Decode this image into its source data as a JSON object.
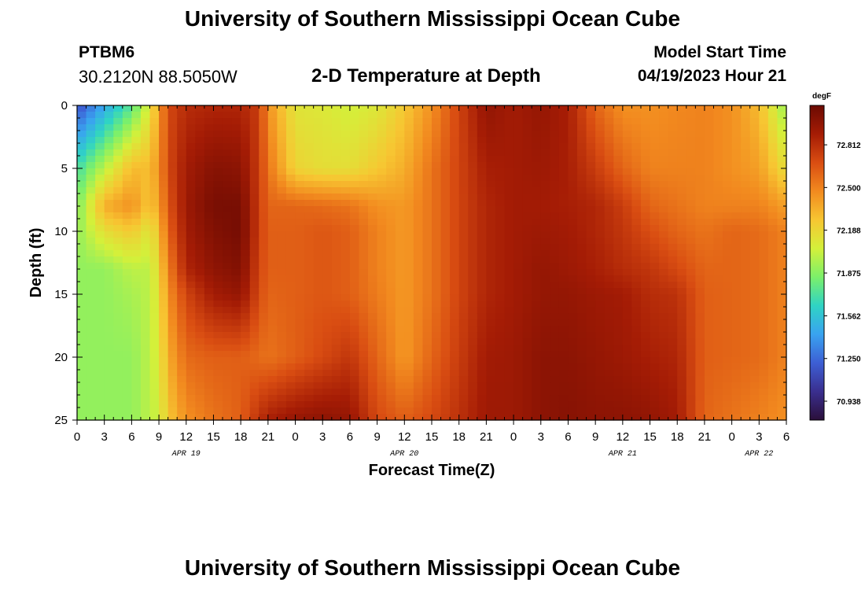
{
  "header": {
    "title": "University of Southern Mississippi Ocean Cube",
    "station": "PTBM6",
    "coords": "30.2120N  88.5050W",
    "subtitle": "2-D Temperature at Depth",
    "model_start_label": "Model Start Time",
    "model_start_value": "04/19/2023 Hour 21"
  },
  "footer": {
    "title": "University of Southern Mississippi Ocean Cube"
  },
  "colors": {
    "palette": [
      "#2b0f3a",
      "#3a2f8f",
      "#3d5fd4",
      "#39a3f0",
      "#2fd4c4",
      "#7cf06a",
      "#d4f03a",
      "#f7c632",
      "#f28a1f",
      "#d94d12",
      "#a51c05",
      "#6b0a02"
    ]
  },
  "chart_data": {
    "type": "heatmap",
    "title": "2-D Temperature at Depth",
    "xlabel": "Forecast Time(Z)",
    "ylabel": "Depth (ft)",
    "units": "degF",
    "x_range_hours": [
      0,
      78
    ],
    "y_range_ft": [
      0,
      25
    ],
    "x_tick_labels": [
      "0",
      "3",
      "6",
      "9",
      "12",
      "15",
      "18",
      "21",
      "0",
      "3",
      "6",
      "9",
      "12",
      "15",
      "18",
      "21",
      "0",
      "3",
      "6",
      "9",
      "12",
      "15",
      "18",
      "21",
      "0",
      "3",
      "6"
    ],
    "y_tick_labels": [
      "0",
      "5",
      "10",
      "15",
      "20",
      "25"
    ],
    "date_labels": [
      {
        "text": "APR 19",
        "hour": 12
      },
      {
        "text": "APR 20",
        "hour": 36
      },
      {
        "text": "APR 21",
        "hour": 60
      },
      {
        "text": "APR 22",
        "hour": 75
      }
    ],
    "colorbar_range": [
      70.8,
      73.1
    ],
    "colorbar_ticks": [
      "72.812",
      "72.500",
      "72.188",
      "71.875",
      "71.562",
      "71.250",
      "70.938"
    ],
    "columns": [
      {
        "hour": 0,
        "depths": [
          0,
          5,
          8,
          10,
          13,
          15,
          20,
          25
        ],
        "temps": [
          71.15,
          71.7,
          71.85,
          71.9,
          71.9,
          71.9,
          71.9,
          71.9
        ]
      },
      {
        "hour": 3,
        "depths": [
          0,
          5,
          8,
          10,
          13,
          15,
          20,
          25
        ],
        "temps": [
          71.45,
          72.0,
          72.35,
          72.15,
          71.9,
          71.9,
          71.9,
          71.9
        ]
      },
      {
        "hour": 6,
        "depths": [
          0,
          5,
          8,
          10,
          13,
          15,
          20,
          25
        ],
        "temps": [
          71.75,
          72.3,
          72.45,
          72.25,
          72.0,
          71.95,
          71.9,
          71.9
        ]
      },
      {
        "hour": 8,
        "depths": [
          0,
          5,
          8,
          10,
          13,
          15,
          20,
          25
        ],
        "temps": [
          72.1,
          72.3,
          72.25,
          72.1,
          72.0,
          72.0,
          72.0,
          72.0
        ]
      },
      {
        "hour": 9,
        "depths": [
          0,
          5,
          8,
          10,
          13,
          15,
          20,
          25
        ],
        "temps": [
          72.4,
          72.45,
          72.4,
          72.3,
          72.2,
          72.15,
          72.1,
          72.05
        ]
      },
      {
        "hour": 10,
        "depths": [
          0,
          5,
          8,
          10,
          13,
          15,
          20,
          25
        ],
        "temps": [
          72.7,
          72.7,
          72.65,
          72.6,
          72.5,
          72.45,
          72.35,
          72.25
        ]
      },
      {
        "hour": 12,
        "depths": [
          0,
          5,
          8,
          10,
          13,
          15,
          20,
          25
        ],
        "temps": [
          72.82,
          72.9,
          72.92,
          72.9,
          72.85,
          72.72,
          72.58,
          72.45
        ]
      },
      {
        "hour": 15,
        "depths": [
          0,
          5,
          8,
          10,
          13,
          15,
          20,
          25
        ],
        "temps": [
          72.85,
          73.0,
          73.05,
          73.02,
          72.97,
          72.9,
          72.62,
          72.55
        ]
      },
      {
        "hour": 18,
        "depths": [
          0,
          5,
          8,
          10,
          13,
          15,
          20,
          25
        ],
        "temps": [
          72.85,
          72.98,
          73.05,
          73.06,
          73.02,
          72.95,
          72.62,
          72.62
        ]
      },
      {
        "hour": 20,
        "depths": [
          0,
          5,
          8,
          10,
          13,
          15,
          20,
          25
        ],
        "temps": [
          72.75,
          72.75,
          72.75,
          72.75,
          72.72,
          72.7,
          72.58,
          72.8
        ]
      },
      {
        "hour": 21,
        "depths": [
          0,
          5,
          8,
          10,
          13,
          15,
          20,
          25
        ],
        "temps": [
          72.45,
          72.55,
          72.6,
          72.62,
          72.62,
          72.6,
          72.55,
          72.88
        ]
      },
      {
        "hour": 24,
        "depths": [
          0,
          5,
          8,
          10,
          13,
          15,
          20,
          25
        ],
        "temps": [
          72.12,
          72.2,
          72.6,
          72.62,
          72.62,
          72.62,
          72.62,
          72.95
        ]
      },
      {
        "hour": 27,
        "depths": [
          0,
          5,
          8,
          10,
          13,
          15,
          20,
          25
        ],
        "temps": [
          72.1,
          72.15,
          72.58,
          72.65,
          72.65,
          72.65,
          72.7,
          72.98
        ]
      },
      {
        "hour": 30,
        "depths": [
          0,
          5,
          8,
          10,
          13,
          15,
          20,
          25
        ],
        "temps": [
          72.05,
          72.15,
          72.55,
          72.62,
          72.62,
          72.62,
          72.78,
          72.95
        ]
      },
      {
        "hour": 33,
        "depths": [
          0,
          5,
          8,
          10,
          13,
          15,
          20,
          25
        ],
        "temps": [
          72.1,
          72.25,
          72.45,
          72.5,
          72.5,
          72.52,
          72.6,
          72.7
        ]
      },
      {
        "hour": 36,
        "depths": [
          0,
          5,
          8,
          10,
          13,
          15,
          20,
          25
        ],
        "temps": [
          72.25,
          72.35,
          72.42,
          72.42,
          72.42,
          72.42,
          72.42,
          72.62
        ]
      },
      {
        "hour": 39,
        "depths": [
          0,
          5,
          8,
          10,
          13,
          15,
          20,
          25
        ],
        "temps": [
          72.45,
          72.55,
          72.55,
          72.55,
          72.55,
          72.55,
          72.6,
          72.7
        ]
      },
      {
        "hour": 42,
        "depths": [
          0,
          5,
          8,
          10,
          13,
          15,
          20,
          25
        ],
        "temps": [
          72.72,
          72.72,
          72.72,
          72.72,
          72.72,
          72.72,
          72.75,
          72.8
        ]
      },
      {
        "hour": 45,
        "depths": [
          0,
          5,
          8,
          10,
          13,
          15,
          20,
          25
        ],
        "temps": [
          72.96,
          72.88,
          72.85,
          72.85,
          72.85,
          72.85,
          72.9,
          72.92
        ]
      },
      {
        "hour": 48,
        "depths": [
          0,
          5,
          8,
          10,
          13,
          15,
          20,
          25
        ],
        "temps": [
          72.9,
          72.9,
          72.9,
          72.9,
          72.9,
          72.9,
          72.92,
          72.92
        ]
      },
      {
        "hour": 51,
        "depths": [
          0,
          5,
          8,
          10,
          13,
          15,
          20,
          25
        ],
        "temps": [
          72.95,
          72.92,
          72.9,
          72.92,
          72.95,
          72.95,
          72.98,
          72.98
        ]
      },
      {
        "hour": 54,
        "depths": [
          0,
          5,
          8,
          10,
          13,
          15,
          20,
          25
        ],
        "temps": [
          72.88,
          72.88,
          72.88,
          72.9,
          72.92,
          72.95,
          72.98,
          73.0
        ]
      },
      {
        "hour": 57,
        "depths": [
          0,
          5,
          8,
          10,
          13,
          15,
          20,
          25
        ],
        "temps": [
          72.6,
          72.75,
          72.85,
          72.85,
          72.88,
          72.92,
          72.95,
          72.98
        ]
      },
      {
        "hour": 60,
        "depths": [
          0,
          5,
          8,
          10,
          13,
          15,
          20,
          25
        ],
        "temps": [
          72.45,
          72.6,
          72.75,
          72.78,
          72.82,
          72.9,
          72.92,
          72.98
        ]
      },
      {
        "hour": 63,
        "depths": [
          0,
          5,
          8,
          10,
          13,
          15,
          20,
          25
        ],
        "temps": [
          72.45,
          72.5,
          72.6,
          72.68,
          72.78,
          72.82,
          72.88,
          72.96
        ]
      },
      {
        "hour": 66,
        "depths": [
          0,
          5,
          8,
          10,
          13,
          15,
          20,
          25
        ],
        "temps": [
          72.48,
          72.5,
          72.55,
          72.6,
          72.7,
          72.8,
          72.85,
          72.9
        ]
      },
      {
        "hour": 69,
        "depths": [
          0,
          5,
          8,
          10,
          13,
          15,
          20,
          25
        ],
        "temps": [
          72.5,
          72.5,
          72.5,
          72.55,
          72.6,
          72.62,
          72.62,
          72.6
        ]
      },
      {
        "hour": 72,
        "depths": [
          0,
          5,
          8,
          10,
          13,
          15,
          20,
          25
        ],
        "temps": [
          72.45,
          72.45,
          72.5,
          72.6,
          72.6,
          72.6,
          72.6,
          72.55
        ]
      },
      {
        "hour": 75,
        "depths": [
          0,
          5,
          8,
          10,
          13,
          15,
          20,
          25
        ],
        "temps": [
          72.3,
          72.4,
          72.5,
          72.58,
          72.58,
          72.58,
          72.58,
          72.5
        ]
      },
      {
        "hour": 78,
        "depths": [
          0,
          5,
          8,
          10,
          13,
          15,
          20,
          25
        ],
        "temps": [
          71.9,
          72.15,
          72.4,
          72.5,
          72.5,
          72.5,
          72.5,
          72.45
        ]
      }
    ]
  }
}
